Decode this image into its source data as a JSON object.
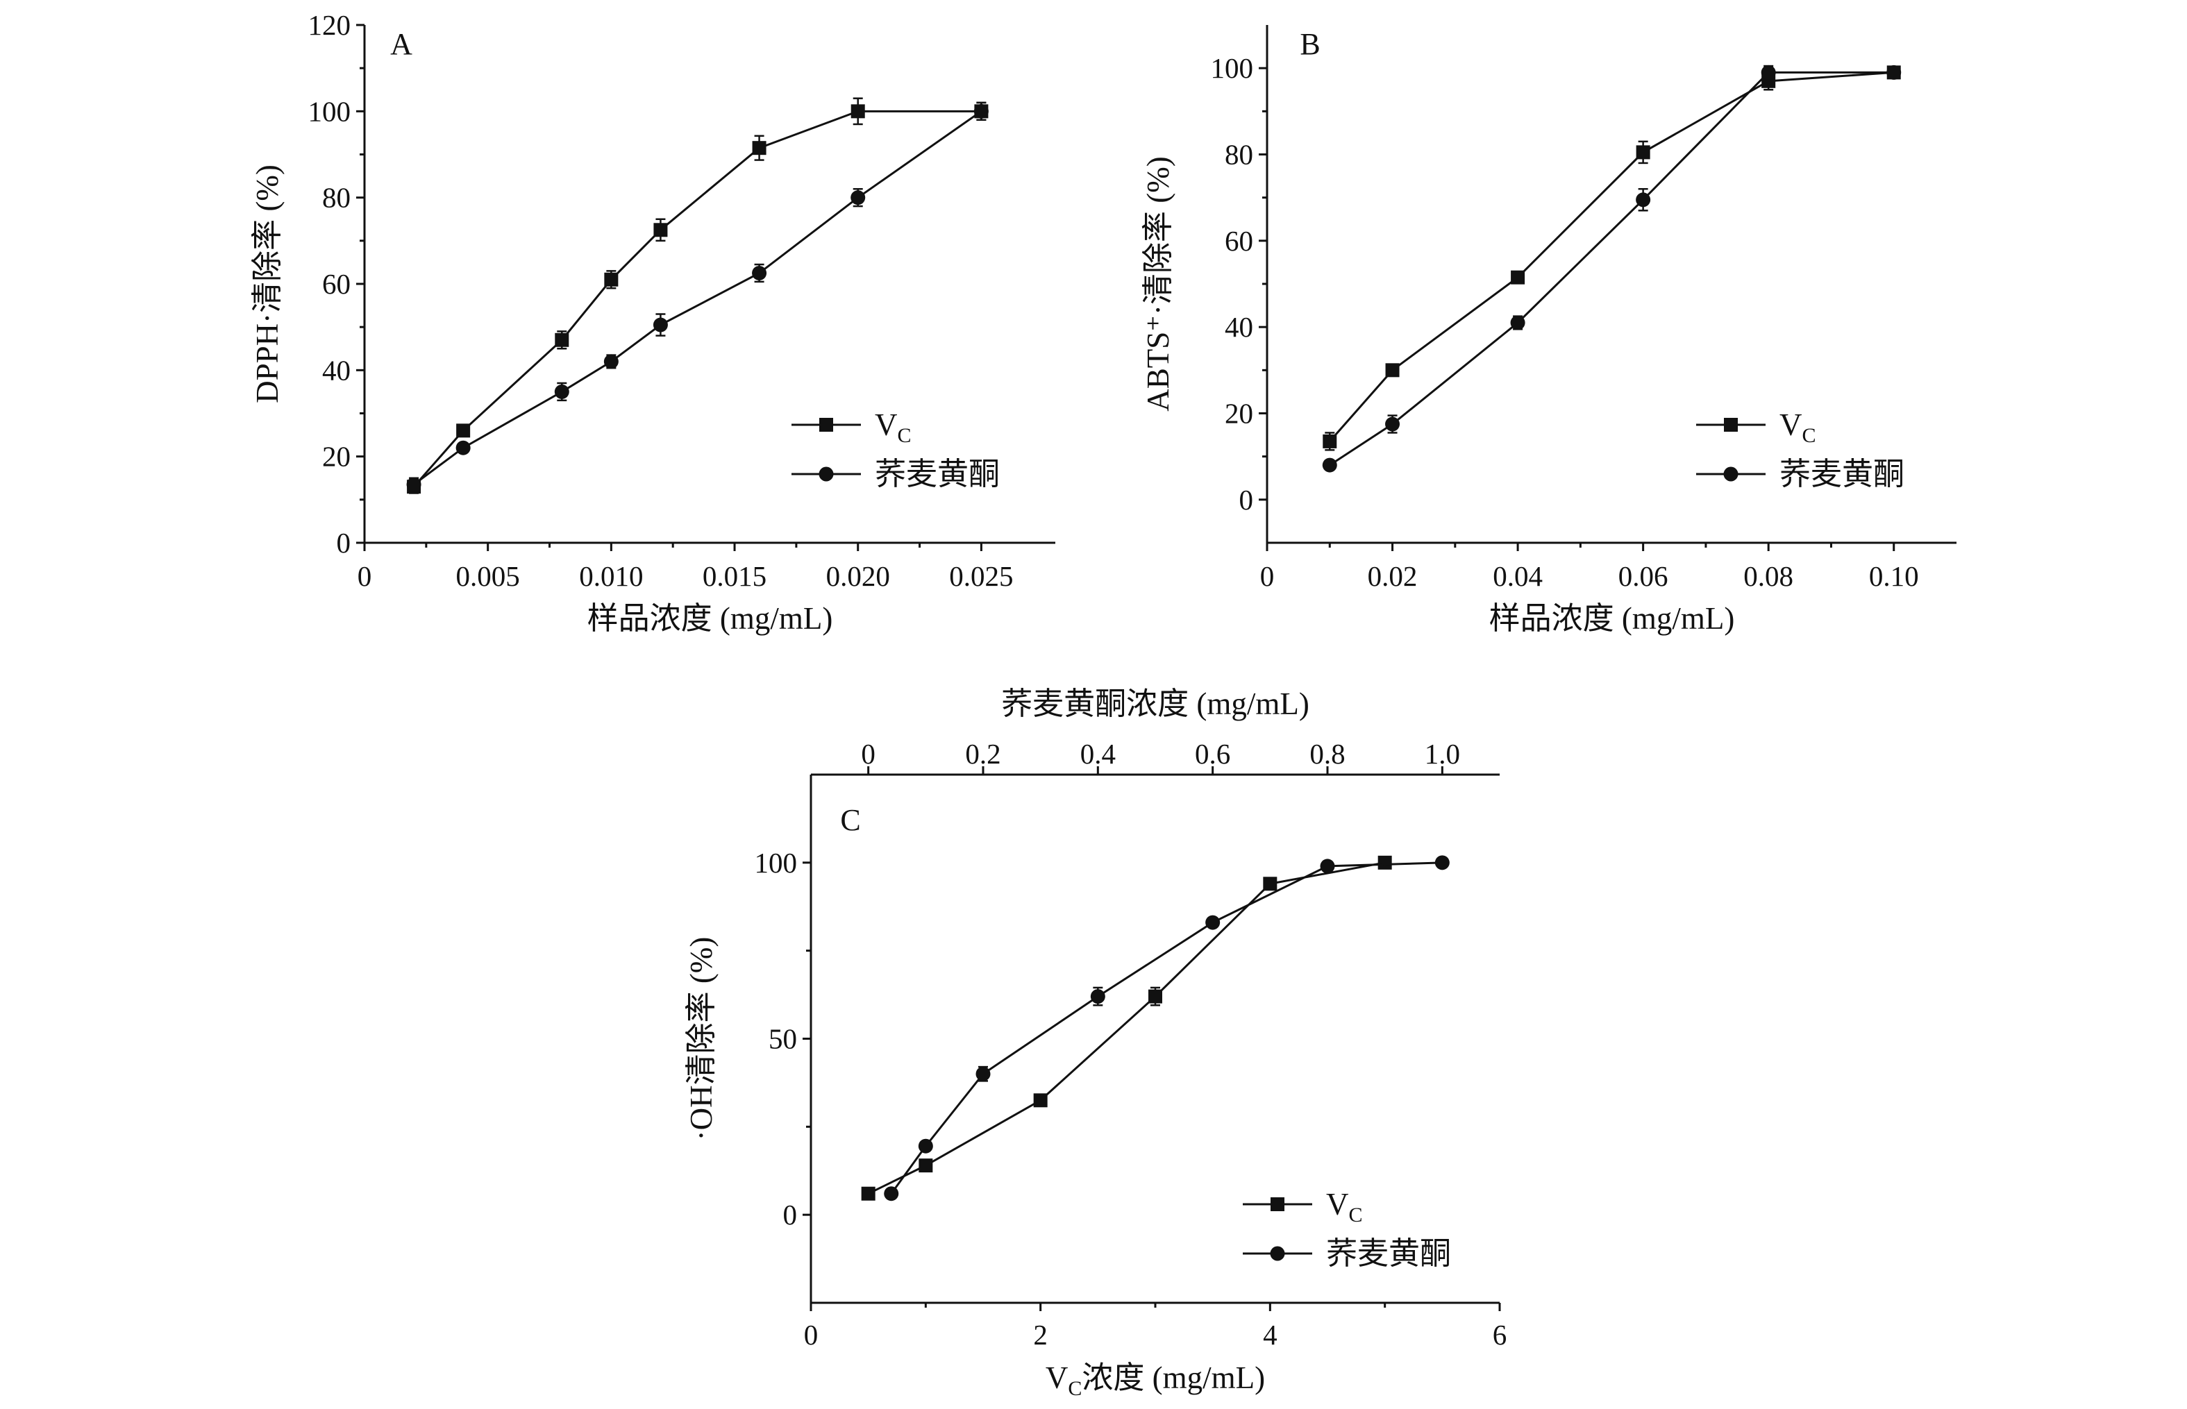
{
  "chart_data": [
    {
      "panel": "A",
      "type": "line",
      "title": "",
      "xlabel": "样品浓度 (mg/mL)",
      "ylabel": "DPPH·清除率 (%)",
      "xlim": [
        0,
        0.028
      ],
      "ylim": [
        0,
        120
      ],
      "xticks": [
        0,
        0.005,
        0.01,
        0.015,
        0.02,
        0.025
      ],
      "xtick_labels": [
        "0",
        "0.005",
        "0.010",
        "0.015",
        "0.020",
        "0.025"
      ],
      "yticks": [
        0,
        20,
        40,
        60,
        80,
        100,
        120
      ],
      "ytick_labels": [
        "0",
        "20",
        "40",
        "60",
        "80",
        "100",
        "120"
      ],
      "legend": [
        "V",
        "荞麦黄酮"
      ],
      "legend_subscript": "C",
      "legend_position": "bottom-right",
      "series": [
        {
          "name": "V_C",
          "marker": "square",
          "x": [
            0.002,
            0.004,
            0.008,
            0.01,
            0.012,
            0.016,
            0.02,
            0.025
          ],
          "y": [
            13,
            26,
            47,
            61,
            72.5,
            91.5,
            100,
            100
          ],
          "err": [
            1.5,
            1,
            2,
            2,
            2.5,
            2.8,
            3,
            2
          ]
        },
        {
          "name": "荞麦黄酮",
          "marker": "circle",
          "x": [
            0.002,
            0.004,
            0.008,
            0.01,
            0.012,
            0.016,
            0.02,
            0.025
          ],
          "y": [
            13.5,
            22,
            35,
            42,
            50.5,
            62.5,
            80,
            100
          ],
          "err": [
            1.5,
            1,
            2,
            1.5,
            2.5,
            2,
            2,
            2
          ]
        }
      ]
    },
    {
      "panel": "B",
      "type": "line",
      "title": "",
      "xlabel": "样品浓度 (mg/mL)",
      "ylabel": "ABTS⁺·清除率 (%)",
      "xlim": [
        0,
        0.11
      ],
      "ylim": [
        -10,
        110
      ],
      "xticks": [
        0,
        0.02,
        0.04,
        0.06,
        0.08,
        0.1
      ],
      "xtick_labels": [
        "0",
        "0.02",
        "0.04",
        "0.06",
        "0.08",
        "0.10"
      ],
      "yticks": [
        0,
        20,
        40,
        60,
        80,
        100
      ],
      "ytick_labels": [
        "0",
        "20",
        "40",
        "60",
        "80",
        "100"
      ],
      "legend": [
        "V",
        "荞麦黄酮"
      ],
      "legend_subscript": "C",
      "legend_position": "bottom-right",
      "series": [
        {
          "name": "V_C",
          "marker": "square",
          "x": [
            0.01,
            0.02,
            0.04,
            0.06,
            0.08,
            0.1
          ],
          "y": [
            13.5,
            30,
            51.5,
            80.5,
            97,
            99
          ],
          "err": [
            2,
            1.2,
            1,
            2.5,
            2,
            1
          ]
        },
        {
          "name": "荞麦黄酮",
          "marker": "circle",
          "x": [
            0.01,
            0.02,
            0.04,
            0.06,
            0.08,
            0.1
          ],
          "y": [
            8,
            17.5,
            41,
            69.5,
            99,
            99
          ],
          "err": [
            1,
            2,
            1.5,
            2.5,
            1.5,
            1
          ]
        }
      ]
    },
    {
      "panel": "C",
      "type": "line",
      "title": "",
      "xlabel": "浓度 (mg/mL)",
      "xlabel_prefix": "V",
      "xlabel_subscript": "C",
      "x2label": "荞麦黄酮浓度 (mg/mL)",
      "ylabel": "·OH清除率 (%)",
      "xlim": [
        0,
        6
      ],
      "x2lim": [
        -0.1,
        1.1
      ],
      "ylim": [
        -25,
        125
      ],
      "xticks": [
        0,
        2,
        4,
        6
      ],
      "xtick_labels": [
        "0",
        "2",
        "4",
        "6"
      ],
      "x2ticks": [
        0,
        0.2,
        0.4,
        0.6,
        0.8,
        1.0
      ],
      "x2tick_labels": [
        "0",
        "0.2",
        "0.4",
        "0.6",
        "0.8",
        "1.0"
      ],
      "yticks": [
        0,
        50,
        100
      ],
      "ytick_labels": [
        "0",
        "50",
        "100"
      ],
      "legend": [
        "V",
        "荞麦黄酮"
      ],
      "legend_subscript": "C",
      "legend_position": "bottom-right",
      "series": [
        {
          "name": "V_C",
          "marker": "square",
          "axis": "bottom",
          "x": [
            0.5,
            1,
            2,
            3,
            4,
            5
          ],
          "y": [
            6,
            14,
            32.5,
            62,
            94,
            100
          ],
          "err": [
            1,
            1,
            1,
            2.5,
            1,
            0.5
          ]
        },
        {
          "name": "荞麦黄酮",
          "marker": "circle",
          "axis": "top",
          "x": [
            0.04,
            0.1,
            0.2,
            0.4,
            0.6,
            0.8,
            1.0
          ],
          "y": [
            6,
            19.5,
            40,
            62,
            83,
            99,
            100
          ],
          "err": [
            1,
            1,
            2,
            2.5,
            1,
            0.5,
            0.5
          ]
        }
      ]
    }
  ]
}
